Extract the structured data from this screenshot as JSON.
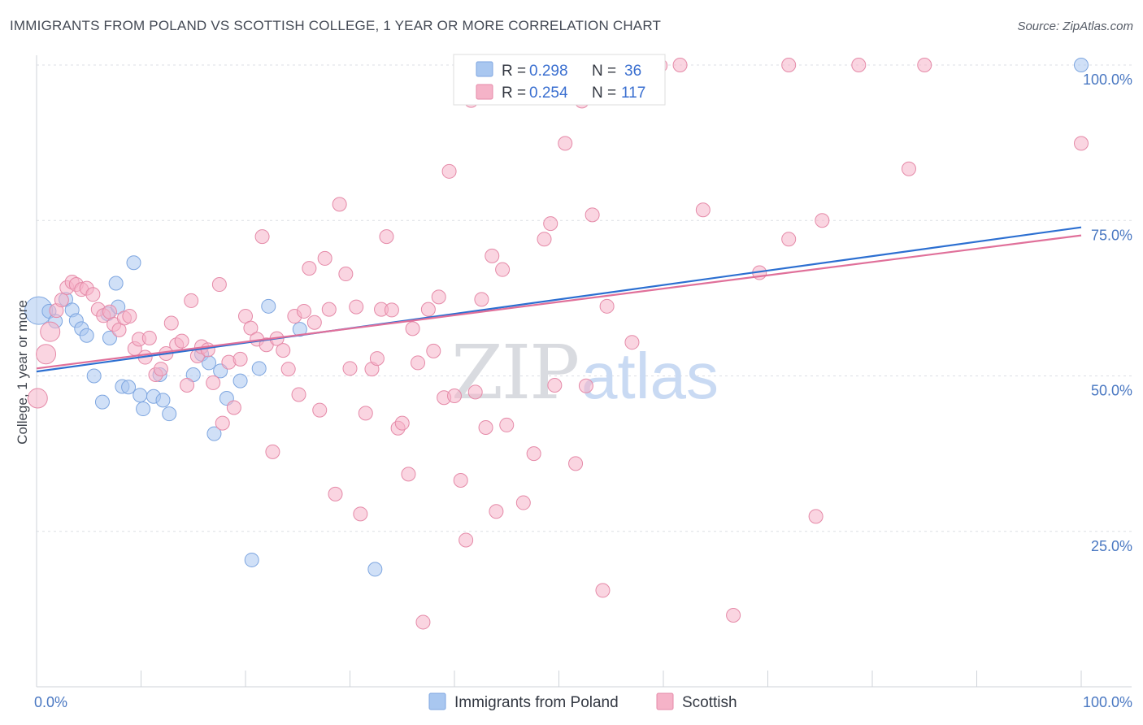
{
  "header": {
    "title": "IMMIGRANTS FROM POLAND VS SCOTTISH COLLEGE, 1 YEAR OR MORE CORRELATION CHART",
    "source": "Source: ZipAtlas.com"
  },
  "watermark": {
    "zip": "ZIP",
    "atlas": "atlas"
  },
  "legend": {
    "rows": [
      {
        "r_label": "R = ",
        "r_value": "0.298",
        "n_label": "N = ",
        "n_value": "36",
        "color": "#a9c7f0"
      },
      {
        "r_label": "R = ",
        "r_value": "0.254",
        "n_label": "N = ",
        "n_value": "117",
        "color": "#f5b3c8"
      }
    ]
  },
  "bottom_legend": [
    {
      "label": "Immigrants from Poland",
      "color": "#a9c7f0"
    },
    {
      "label": "Scottish",
      "color": "#f5b3c8"
    }
  ],
  "chart_data": {
    "type": "scatter",
    "title": "IMMIGRANTS FROM POLAND VS SCOTTISH COLLEGE, 1 YEAR OR MORE CORRELATION CHART",
    "xlabel": "",
    "ylabel": "College, 1 year or more",
    "xlim": [
      0,
      100
    ],
    "ylim": [
      0,
      104
    ],
    "x_tick_labels": [
      "0.0%",
      "100.0%"
    ],
    "y_ticks": [
      {
        "value": 100,
        "label": "100.0%"
      },
      {
        "value": 75,
        "label": "75.0%"
      },
      {
        "value": 50,
        "label": "50.0%"
      },
      {
        "value": 25,
        "label": "25.0%"
      }
    ],
    "grid": "horizontal dashed",
    "legend_position": "top-center",
    "series": [
      {
        "name": "Immigrants from Poland",
        "color": "#a9c7f0",
        "stroke": "#7ea6e0",
        "line_color": "#2c6fd1",
        "trend": [
          [
            0,
            50.7
          ],
          [
            100,
            73.9
          ]
        ],
        "points": [
          [
            0.2,
            60.5,
            3
          ],
          [
            1.2,
            60.4,
            1
          ],
          [
            1.8,
            58.8,
            1
          ],
          [
            2.8,
            62.3,
            1
          ],
          [
            3.4,
            60.6,
            1
          ],
          [
            3.8,
            58.9,
            1
          ],
          [
            4.3,
            57.6,
            1
          ],
          [
            4.8,
            56.5,
            1
          ],
          [
            5.5,
            50.0,
            1
          ],
          [
            6.3,
            45.8,
            1
          ],
          [
            6.8,
            60.0,
            1
          ],
          [
            7.0,
            56.1,
            1
          ],
          [
            7.6,
            64.9,
            1
          ],
          [
            7.8,
            61.1,
            1
          ],
          [
            8.2,
            48.3,
            1
          ],
          [
            8.8,
            48.2,
            1
          ],
          [
            9.3,
            68.2,
            1
          ],
          [
            9.9,
            46.9,
            1
          ],
          [
            10.2,
            44.7,
            1
          ],
          [
            11.2,
            46.7,
            1
          ],
          [
            11.8,
            50.2,
            1
          ],
          [
            12.1,
            46.1,
            1
          ],
          [
            12.7,
            43.9,
            1
          ],
          [
            15.0,
            50.2,
            1
          ],
          [
            15.8,
            53.5,
            1
          ],
          [
            16.5,
            52.1,
            1
          ],
          [
            17.0,
            40.7,
            1
          ],
          [
            17.6,
            50.8,
            1
          ],
          [
            18.2,
            46.4,
            1
          ],
          [
            19.5,
            49.2,
            1
          ],
          [
            20.6,
            20.4,
            1
          ],
          [
            21.3,
            51.2,
            1
          ],
          [
            22.2,
            61.2,
            1
          ],
          [
            25.2,
            57.5,
            1
          ],
          [
            32.4,
            18.9,
            1
          ],
          [
            100.0,
            100.0,
            1
          ]
        ]
      },
      {
        "name": "Scottish",
        "color": "#f5b3c8",
        "stroke": "#e58aa8",
        "line_color": "#e0709a",
        "trend": [
          [
            0,
            51.2
          ],
          [
            100,
            72.6
          ]
        ],
        "points": [
          [
            0.1,
            46.4,
            2
          ],
          [
            0.9,
            53.5,
            2
          ],
          [
            1.3,
            57.1,
            2
          ],
          [
            1.9,
            60.5,
            1
          ],
          [
            2.4,
            62.2,
            1
          ],
          [
            2.9,
            64.2,
            1
          ],
          [
            3.4,
            65.1,
            1
          ],
          [
            3.8,
            64.7,
            1
          ],
          [
            4.3,
            63.9,
            1
          ],
          [
            4.8,
            64.1,
            1
          ],
          [
            5.4,
            63.1,
            1
          ],
          [
            5.9,
            60.7,
            1
          ],
          [
            6.4,
            59.7,
            1
          ],
          [
            7.0,
            60.3,
            1
          ],
          [
            7.4,
            58.3,
            1
          ],
          [
            7.9,
            57.4,
            1
          ],
          [
            8.4,
            59.3,
            1
          ],
          [
            8.9,
            59.6,
            1
          ],
          [
            9.4,
            54.4,
            1
          ],
          [
            9.8,
            55.9,
            1
          ],
          [
            10.4,
            53.0,
            1
          ],
          [
            10.8,
            56.1,
            1
          ],
          [
            11.4,
            50.2,
            1
          ],
          [
            11.9,
            51.1,
            1
          ],
          [
            12.4,
            53.6,
            1
          ],
          [
            12.9,
            58.5,
            1
          ],
          [
            13.4,
            55.0,
            1
          ],
          [
            13.9,
            55.6,
            1
          ],
          [
            14.4,
            48.5,
            1
          ],
          [
            14.8,
            62.1,
            1
          ],
          [
            15.4,
            53.2,
            1
          ],
          [
            15.8,
            54.7,
            1
          ],
          [
            16.4,
            54.2,
            1
          ],
          [
            16.9,
            48.9,
            1
          ],
          [
            17.5,
            64.7,
            1
          ],
          [
            17.8,
            42.4,
            1
          ],
          [
            18.4,
            52.2,
            1
          ],
          [
            18.9,
            44.9,
            1
          ],
          [
            19.5,
            52.7,
            1
          ],
          [
            20.0,
            59.6,
            1
          ],
          [
            20.5,
            57.7,
            1
          ],
          [
            21.1,
            55.9,
            1
          ],
          [
            21.6,
            72.4,
            1
          ],
          [
            22.0,
            55.0,
            1
          ],
          [
            22.6,
            37.8,
            1
          ],
          [
            23.0,
            56.0,
            1
          ],
          [
            23.6,
            54.1,
            1
          ],
          [
            24.1,
            51.1,
            1
          ],
          [
            24.7,
            59.6,
            1
          ],
          [
            25.1,
            47.0,
            1
          ],
          [
            25.6,
            60.4,
            1
          ],
          [
            26.1,
            67.3,
            1
          ],
          [
            26.6,
            58.6,
            1
          ],
          [
            27.1,
            44.5,
            1
          ],
          [
            27.6,
            68.9,
            1
          ],
          [
            28.0,
            60.7,
            1
          ],
          [
            28.6,
            31.0,
            1
          ],
          [
            29.0,
            77.6,
            1
          ],
          [
            29.6,
            66.4,
            1
          ],
          [
            30.0,
            51.2,
            1
          ],
          [
            30.6,
            61.1,
            1
          ],
          [
            31.0,
            27.8,
            1
          ],
          [
            31.5,
            44.0,
            1
          ],
          [
            32.1,
            51.1,
            1
          ],
          [
            32.6,
            52.8,
            1
          ],
          [
            33.0,
            60.7,
            1
          ],
          [
            33.5,
            72.4,
            1
          ],
          [
            34.0,
            60.6,
            1
          ],
          [
            34.6,
            41.6,
            1
          ],
          [
            35.0,
            42.4,
            1
          ],
          [
            35.6,
            34.2,
            1
          ],
          [
            36.0,
            57.6,
            1
          ],
          [
            36.5,
            52.1,
            1
          ],
          [
            37.0,
            10.4,
            1
          ],
          [
            37.5,
            60.7,
            1
          ],
          [
            38.0,
            54.0,
            1
          ],
          [
            38.5,
            62.7,
            1
          ],
          [
            39.0,
            46.5,
            1
          ],
          [
            39.5,
            82.9,
            1
          ],
          [
            40.0,
            46.8,
            1
          ],
          [
            40.6,
            33.2,
            1
          ],
          [
            41.1,
            23.6,
            1
          ],
          [
            41.6,
            94.3,
            1
          ],
          [
            42.0,
            47.4,
            1
          ],
          [
            42.6,
            62.3,
            1
          ],
          [
            43.0,
            41.7,
            1
          ],
          [
            43.6,
            69.3,
            1
          ],
          [
            44.0,
            28.2,
            1
          ],
          [
            44.6,
            67.1,
            1
          ],
          [
            45.0,
            42.1,
            1
          ],
          [
            46.6,
            29.6,
            1
          ],
          [
            47.6,
            37.5,
            1
          ],
          [
            48.6,
            72.0,
            1
          ],
          [
            49.2,
            74.5,
            1
          ],
          [
            49.6,
            48.5,
            1
          ],
          [
            50.6,
            87.4,
            1
          ],
          [
            51.6,
            35.9,
            1
          ],
          [
            52.2,
            94.2,
            1
          ],
          [
            52.6,
            48.4,
            1
          ],
          [
            53.2,
            75.9,
            1
          ],
          [
            54.2,
            15.5,
            1
          ],
          [
            54.6,
            61.2,
            1
          ],
          [
            57.0,
            55.4,
            1
          ],
          [
            59.0,
            99.9,
            1
          ],
          [
            59.7,
            99.9,
            1
          ],
          [
            61.6,
            100.0,
            1
          ],
          [
            63.8,
            76.7,
            1
          ],
          [
            66.7,
            11.5,
            1
          ],
          [
            69.2,
            66.6,
            1
          ],
          [
            72.0,
            100.0,
            1
          ],
          [
            72.0,
            72.0,
            1
          ],
          [
            74.6,
            27.4,
            1
          ],
          [
            75.2,
            75.0,
            1
          ],
          [
            78.7,
            100.0,
            1
          ],
          [
            83.5,
            83.3,
            1
          ],
          [
            85.0,
            100.0,
            1
          ],
          [
            100.0,
            87.4,
            1
          ]
        ]
      }
    ]
  }
}
